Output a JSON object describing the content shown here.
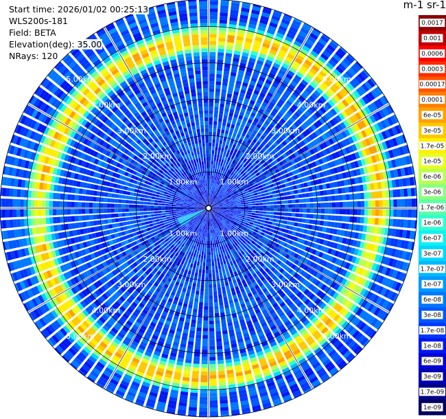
{
  "info": {
    "start_time": "Start time: 2026/01/02 00:25:13",
    "instrument": "WLS200s-181",
    "field": "Field: BETA",
    "elevation": "Elevation(deg): 35.00",
    "nrays": "NRays: 120"
  },
  "chart_data": {
    "type": "heatmap",
    "projection": "polar",
    "field": "BETA",
    "elevation_deg": 35.0,
    "n_rays": 120,
    "range_rings_km": [
      1,
      2,
      3,
      4,
      5
    ],
    "range_ring_labels": [
      "1.00km",
      "2.00km",
      "3.00km",
      "4.00km",
      "5.00km"
    ],
    "max_range_km": 5.75,
    "colorbar": {
      "title": "m-1 sr-1",
      "ticks": [
        "0.0017",
        "0.001",
        "0.0006",
        "0.0003",
        "0.00017",
        "0.0001",
        "6e-05",
        "3e-05",
        "1.7e-05",
        "1e-05",
        "6e-06",
        "3e-06",
        "1.7e-06",
        "1e-06",
        "6e-07",
        "3e-07",
        "1.7e-07",
        "1e-07",
        "6e-08",
        "3e-08",
        "1.7e-08",
        "1e-08",
        "6e-09",
        "3e-09",
        "1.7e-09",
        "1e-09"
      ],
      "colors": [
        "#8b0000",
        "#c00000",
        "#ff0000",
        "#ff2a00",
        "#ff5500",
        "#ff7f00",
        "#ffa000",
        "#ffc800",
        "#ffee00",
        "#e8ff20",
        "#b8ff50",
        "#8aff80",
        "#5effa8",
        "#30ffd0",
        "#10f0f0",
        "#00d8ff",
        "#00b8ff",
        "#0098ff",
        "#0078ff",
        "#0058ff",
        "#0038ff",
        "#0018f0",
        "#0000d8",
        "#0000b0",
        "#000088",
        "#000060"
      ]
    },
    "aerosol_ring": {
      "range_km": 4.75,
      "beta_peak": "3e-05"
    },
    "background_beta": "3e-08"
  }
}
